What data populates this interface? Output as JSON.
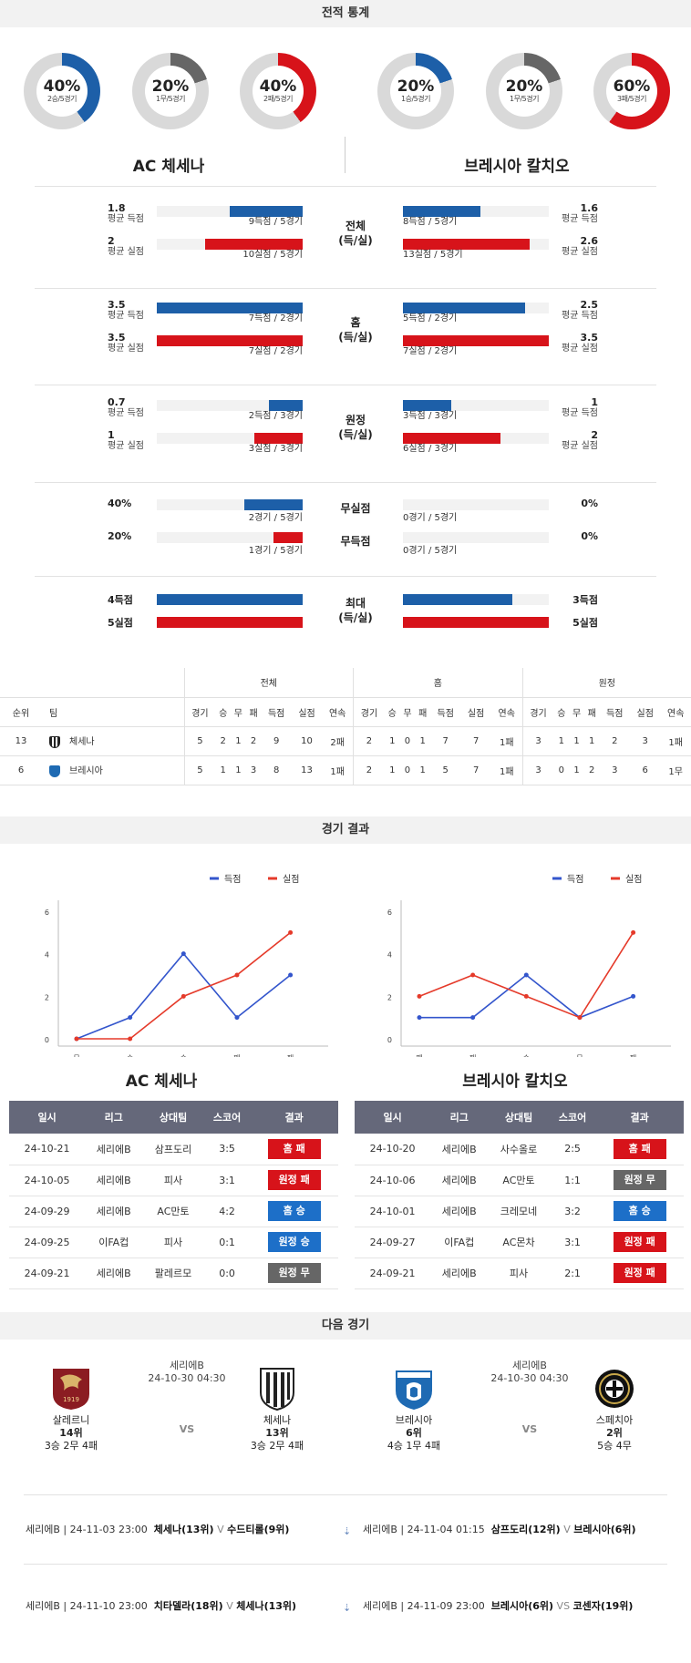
{
  "stats_section": {
    "title": "전적 통계"
  },
  "donuts": [
    {
      "pct": "40%",
      "sub": "2승/5경기",
      "value": 0.4,
      "color": "#1d5fa8"
    },
    {
      "pct": "20%",
      "sub": "1무/5경기",
      "value": 0.2,
      "color": "#666666"
    },
    {
      "pct": "40%",
      "sub": "2패/5경기",
      "value": 0.4,
      "color": "#d7131a"
    },
    {
      "pct": "20%",
      "sub": "1승/5경기",
      "value": 0.2,
      "color": "#1d5fa8"
    },
    {
      "pct": "20%",
      "sub": "1무/5경기",
      "value": 0.2,
      "color": "#666666"
    },
    {
      "pct": "60%",
      "sub": "3패/5경기",
      "value": 0.6,
      "color": "#d7131a"
    }
  ],
  "teams": {
    "home": "AC 체세나",
    "away": "브레시아 칼치오"
  },
  "compare": {
    "overall": {
      "label1": "전체",
      "label2": "(득/실)",
      "home": {
        "scored": "1.8",
        "scored_label": "평균 득점",
        "scored_cap": "9득점 / 5경기",
        "scored_ratio": 0.5,
        "conceded": "2",
        "conceded_label": "평균 실점",
        "conceded_cap": "10실점 / 5경기",
        "conceded_ratio": 0.67
      },
      "away": {
        "scored": "1.6",
        "scored_label": "평균 득점",
        "scored_cap": "8득점 / 5경기",
        "scored_ratio": 0.53,
        "conceded": "2.6",
        "conceded_label": "평균 실점",
        "conceded_cap": "13실점 / 5경기",
        "conceded_ratio": 0.87
      }
    },
    "home_games": {
      "label1": "홈",
      "label2": "(득/실)",
      "home": {
        "scored": "3.5",
        "scored_label": "평균 득점",
        "scored_cap": "7득점 / 2경기",
        "scored_ratio": 1.0,
        "conceded": "3.5",
        "conceded_label": "평균 실점",
        "conceded_cap": "7실점 / 2경기",
        "conceded_ratio": 1.0
      },
      "away": {
        "scored": "2.5",
        "scored_label": "평균 득점",
        "scored_cap": "5득점 / 2경기",
        "scored_ratio": 0.84,
        "conceded": "3.5",
        "conceded_label": "평균 실점",
        "conceded_cap": "7실점 / 2경기",
        "conceded_ratio": 1.0
      }
    },
    "away_games": {
      "label1": "원정",
      "label2": "(득/실)",
      "home": {
        "scored": "0.7",
        "scored_label": "평균 득점",
        "scored_cap": "2득점 / 3경기",
        "scored_ratio": 0.23,
        "conceded": "1",
        "conceded_label": "평균 실점",
        "conceded_cap": "3실점 / 3경기",
        "conceded_ratio": 0.33
      },
      "away": {
        "scored": "1",
        "scored_label": "평균 득점",
        "scored_cap": "3득점 / 3경기",
        "scored_ratio": 0.33,
        "conceded": "2",
        "conceded_label": "평균 실점",
        "conceded_cap": "6실점 / 3경기",
        "conceded_ratio": 0.67
      }
    },
    "clean": {
      "label": "무실점",
      "home_pct": "40%",
      "home_cap": "2경기 / 5경기",
      "home_ratio": 0.4,
      "away_pct": "0%",
      "away_cap": "0경기 / 5경기",
      "away_ratio": 0
    },
    "blank": {
      "label": "무득점",
      "home_pct": "20%",
      "home_cap": "1경기 / 5경기",
      "home_ratio": 0.2,
      "away_pct": "0%",
      "away_cap": "0경기 / 5경기",
      "away_ratio": 0
    },
    "max": {
      "label1": "최대",
      "label2": "(득/실)",
      "home_scored": "4득점",
      "home_conceded": "5실점",
      "away_scored": "3득점",
      "away_conceded": "5실점",
      "home_scored_ratio": 1.0,
      "home_conceded_ratio": 1.0,
      "away_scored_ratio": 0.75,
      "away_conceded_ratio": 1.0
    }
  },
  "standings": {
    "groups": [
      "전체",
      "홈",
      "원정"
    ],
    "rank_label": "순위",
    "team_label": "팀",
    "cols": [
      "경기",
      "승",
      "무",
      "패",
      "득점",
      "실점",
      "연속"
    ],
    "rows": [
      {
        "rank": "13",
        "team": "체세나",
        "overall": [
          "5",
          "2",
          "1",
          "2",
          "9",
          "10",
          "2패"
        ],
        "home": [
          "2",
          "1",
          "0",
          "1",
          "7",
          "7",
          "1패"
        ],
        "away": [
          "3",
          "1",
          "1",
          "1",
          "2",
          "3",
          "1패"
        ]
      },
      {
        "rank": "6",
        "team": "브레시아",
        "overall": [
          "5",
          "1",
          "1",
          "3",
          "8",
          "13",
          "1패"
        ],
        "home": [
          "2",
          "1",
          "0",
          "1",
          "5",
          "7",
          "1패"
        ],
        "away": [
          "3",
          "0",
          "1",
          "2",
          "3",
          "6",
          "1무"
        ]
      }
    ]
  },
  "results_section": {
    "title": "경기 결과"
  },
  "chart_data": [
    {
      "type": "line",
      "categories": [
        "무",
        "승",
        "승",
        "패",
        "패"
      ],
      "series": [
        {
          "name": "득점",
          "color": "#3355cc",
          "values": [
            0,
            1,
            4,
            1,
            3
          ]
        },
        {
          "name": "실점",
          "color": "#e53a2a",
          "values": [
            0,
            0,
            2,
            3,
            5
          ]
        }
      ],
      "yticks": [
        "0",
        "2",
        "4",
        "6"
      ],
      "ylim": [
        0,
        6
      ]
    },
    {
      "type": "line",
      "categories": [
        "패",
        "패",
        "승",
        "무",
        "패"
      ],
      "series": [
        {
          "name": "득점",
          "color": "#3355cc",
          "values": [
            1,
            1,
            3,
            1,
            2
          ]
        },
        {
          "name": "실점",
          "color": "#e53a2a",
          "values": [
            2,
            3,
            2,
            1,
            5
          ]
        }
      ],
      "yticks": [
        "0",
        "2",
        "4",
        "6"
      ],
      "ylim": [
        0,
        6
      ]
    }
  ],
  "result_tables": {
    "headers": [
      "일시",
      "리그",
      "상대팀",
      "스코어",
      "결과"
    ],
    "home": [
      {
        "date": "24-10-21",
        "league": "세리에B",
        "opp": "삼프도리",
        "score": "3:5",
        "result": "홈 패",
        "kind": "red"
      },
      {
        "date": "24-10-05",
        "league": "세리에B",
        "opp": "피사",
        "score": "3:1",
        "result": "원정 패",
        "kind": "red"
      },
      {
        "date": "24-09-29",
        "league": "세리에B",
        "opp": "AC만토",
        "score": "4:2",
        "result": "홈 승",
        "kind": "blue"
      },
      {
        "date": "24-09-25",
        "league": "이FA컵",
        "opp": "피사",
        "score": "0:1",
        "result": "원정 승",
        "kind": "blue"
      },
      {
        "date": "24-09-21",
        "league": "세리에B",
        "opp": "팔레르모",
        "score": "0:0",
        "result": "원정 무",
        "kind": "gray"
      }
    ],
    "away": [
      {
        "date": "24-10-20",
        "league": "세리에B",
        "opp": "사수올로",
        "score": "2:5",
        "result": "홈 패",
        "kind": "red"
      },
      {
        "date": "24-10-06",
        "league": "세리에B",
        "opp": "AC만토",
        "score": "1:1",
        "result": "원정 무",
        "kind": "gray"
      },
      {
        "date": "24-10-01",
        "league": "세리에B",
        "opp": "크레모네",
        "score": "3:2",
        "result": "홈 승",
        "kind": "blue"
      },
      {
        "date": "24-09-27",
        "league": "이FA컵",
        "opp": "AC몬차",
        "score": "3:1",
        "result": "원정 패",
        "kind": "red"
      },
      {
        "date": "24-09-21",
        "league": "세리에B",
        "opp": "피사",
        "score": "2:1",
        "result": "원정 패",
        "kind": "red"
      }
    ]
  },
  "next_section": {
    "title": "다음 경기"
  },
  "next": {
    "left": {
      "t1": "살레르니",
      "t1_rank": "14위",
      "t1_rec": "3승 2무 4패",
      "league": "세리에B",
      "dt": "24-10-30 04:30",
      "vs": "VS",
      "t2": "체세나",
      "t2_rank": "13위",
      "t2_rec": "3승 2무 4패"
    },
    "right": {
      "t1": "브레시아",
      "t1_rank": "6위",
      "t1_rec": "4승 1무 4패",
      "league": "세리에B",
      "dt": "24-10-30 04:30",
      "vs": "VS",
      "t2": "스페치아",
      "t2_rank": "2위",
      "t2_rec": "5승 4무"
    }
  },
  "upcoming": [
    {
      "left": {
        "pre": "세리에B | 24-11-03 23:00",
        "t1": "체세나(13위)",
        "vs": "V",
        "t2": "수드티롤(9위)"
      },
      "right": {
        "pre": "세리에B | 24-11-04 01:15",
        "t1": "삼프도리(12위)",
        "vs": "V",
        "t2": "브레시아(6위)"
      }
    },
    {
      "left": {
        "pre": "세리에B | 24-11-10 23:00",
        "t1": "치타델라(18위)",
        "vs": "V",
        "t2": "체세나(13위)"
      },
      "right": {
        "pre": "세리에B | 24-11-09 23:00",
        "t1": "브레시아(6위)",
        "vs": "VS",
        "t2": "코센자(19위)"
      }
    }
  ]
}
